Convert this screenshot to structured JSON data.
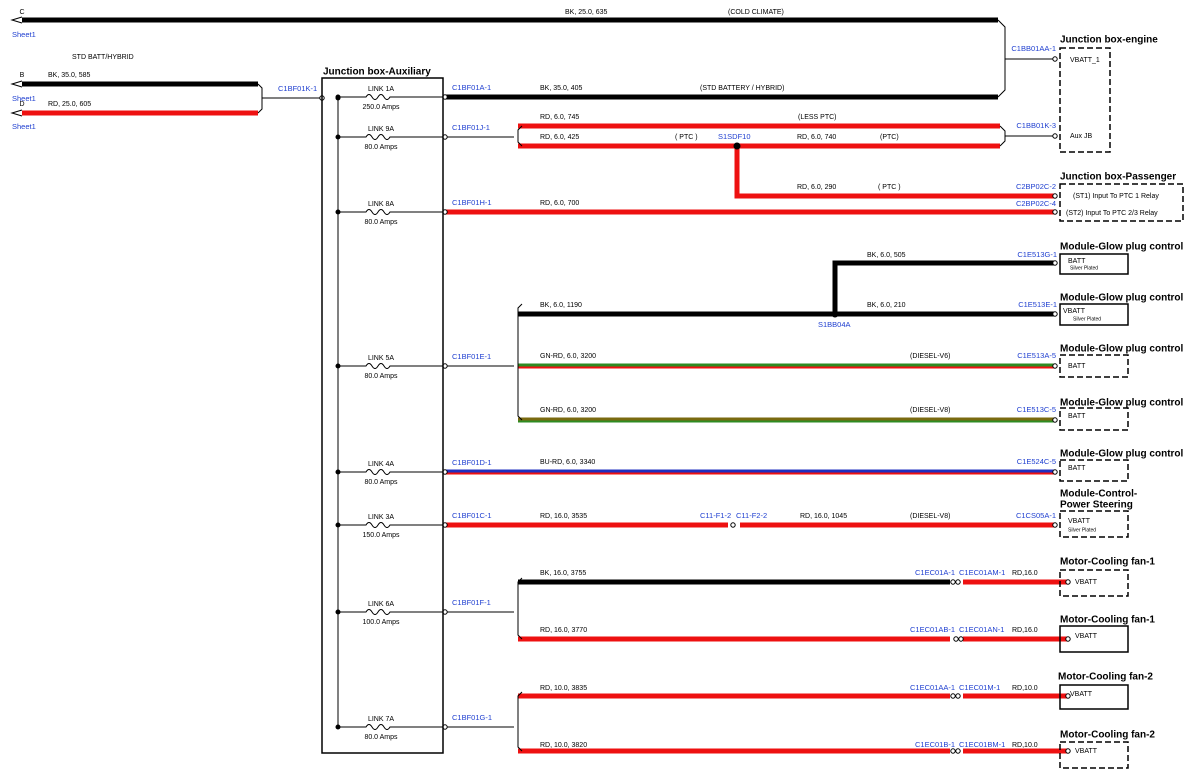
{
  "sheet_refs": [
    {
      "letter": "C",
      "sheet": "Sheet1"
    },
    {
      "letter": "B",
      "sheet": "Sheet1"
    },
    {
      "letter": "D",
      "sheet": "Sheet1"
    }
  ],
  "note": "STD BATT/HYBRID",
  "junction_box": {
    "title": "Junction box-Auxiliary",
    "input_connector": "C1BF01K-1",
    "links": [
      {
        "name": "LINK 1A",
        "rating": "250.0 Amps",
        "connector": "C1BF01A-1"
      },
      {
        "name": "LINK 9A",
        "rating": "80.0 Amps",
        "connector": "C1BF01J-1"
      },
      {
        "name": "LINK 8A",
        "rating": "80.0 Amps",
        "connector": "C1BF01H-1"
      },
      {
        "name": "LINK 5A",
        "rating": "80.0 Amps",
        "connector": "C1BF01E-1"
      },
      {
        "name": "LINK 4A",
        "rating": "80.0 Amps",
        "connector": "C1BF01D-1"
      },
      {
        "name": "LINK 3A",
        "rating": "150.0 Amps",
        "connector": "C1BF01C-1"
      },
      {
        "name": "LINK 6A",
        "rating": "100.0 Amps",
        "connector": "C1BF01F-1"
      },
      {
        "name": "LINK 7A",
        "rating": "80.0 Amps",
        "connector": "C1BF01G-1"
      }
    ]
  },
  "wire_labels": [
    "BK, 25.0, 635",
    "(COLD CLIMATE)",
    "BK, 35.0, 585",
    "RD, 25.0, 605",
    "BK, 35.0, 405",
    "(STD BATTERY / HYBRID)",
    "RD, 6.0, 745",
    "(LESS PTC)",
    "RD, 6.0, 425",
    "( PTC )",
    "RD, 6.0, 740",
    "(PTC)",
    "RD, 6.0, 290",
    "( PTC )",
    "RD, 6.0, 700",
    "BK, 6.0, 505",
    "BK, 6.0, 1190",
    "BK, 6.0, 210",
    "GN-RD, 6.0, 3200",
    "(DIESEL-V6)",
    "GN-RD, 6.0, 3200",
    "(DIESEL-V8)",
    "BU-RD, 6.0, 3340",
    "RD, 16.0, 3535",
    "RD, 16.0, 1045",
    "(DIESEL-V8)",
    "BK, 16.0, 3755",
    "RD,16.0",
    "RD, 16.0, 3770",
    "RD,16.0",
    "RD, 10.0, 3835",
    "RD,10.0",
    "RD, 10.0, 3820",
    "RD,10.0"
  ],
  "connectors": [
    "C1BB01AA-1",
    "C1BB01K-3",
    "C2BP02C-2",
    "C2BP02C-4",
    "C1E513G-1",
    "C1E513E-1",
    "C1E513A-5",
    "C1E513C-5",
    "C1E524C-5",
    "C11-F1-2",
    "C11-F2-2",
    "C1CS05A-1",
    "C1EC01A-1",
    "C1EC01AM-1",
    "C1EC01AB-1",
    "C1EC01AN-1",
    "C1EC01AA-1",
    "C1EC01M-1",
    "C1EC01B-1",
    "C1EC01BM-1"
  ],
  "splices": [
    "S1SDF10",
    "S1BB04A"
  ],
  "components": [
    {
      "title_lines": [
        "Junction box-engine"
      ],
      "labels": [
        "VBATT_1",
        "Aux JB"
      ]
    },
    {
      "title_lines": [
        "Junction box-Passenger"
      ],
      "labels": [
        "(ST1) Input To PTC 1 Relay",
        "(ST2) Input To PTC 2/3 Relay"
      ]
    },
    {
      "title_lines": [
        "Module-Glow plug control"
      ],
      "labels": [
        "BATT",
        "Silver Plated"
      ]
    },
    {
      "title_lines": [
        "Module-Glow plug control"
      ],
      "labels": [
        "VBATT",
        "Silver Plated"
      ]
    },
    {
      "title_lines": [
        "Module-Glow plug control"
      ],
      "labels": [
        "BATT"
      ]
    },
    {
      "title_lines": [
        "Module-Glow plug control"
      ],
      "labels": [
        "BATT"
      ]
    },
    {
      "title_lines": [
        "Module-Glow plug control"
      ],
      "labels": [
        "BATT"
      ]
    },
    {
      "title_lines": [
        "Module-Control-",
        "Power Steering"
      ],
      "labels": [
        "VBATT",
        "Silver Plated"
      ]
    },
    {
      "title_lines": [
        "Motor-Cooling fan-1"
      ],
      "labels": [
        "VBATT"
      ]
    },
    {
      "title_lines": [
        "Motor-Cooling fan-1"
      ],
      "labels": [
        "VBATT"
      ]
    },
    {
      "title_lines": [
        "Motor-Cooling fan-2"
      ],
      "labels": [
        "VBATT"
      ]
    },
    {
      "title_lines": [
        "Motor-Cooling fan-2"
      ],
      "labels": [
        "VBATT"
      ]
    }
  ]
}
